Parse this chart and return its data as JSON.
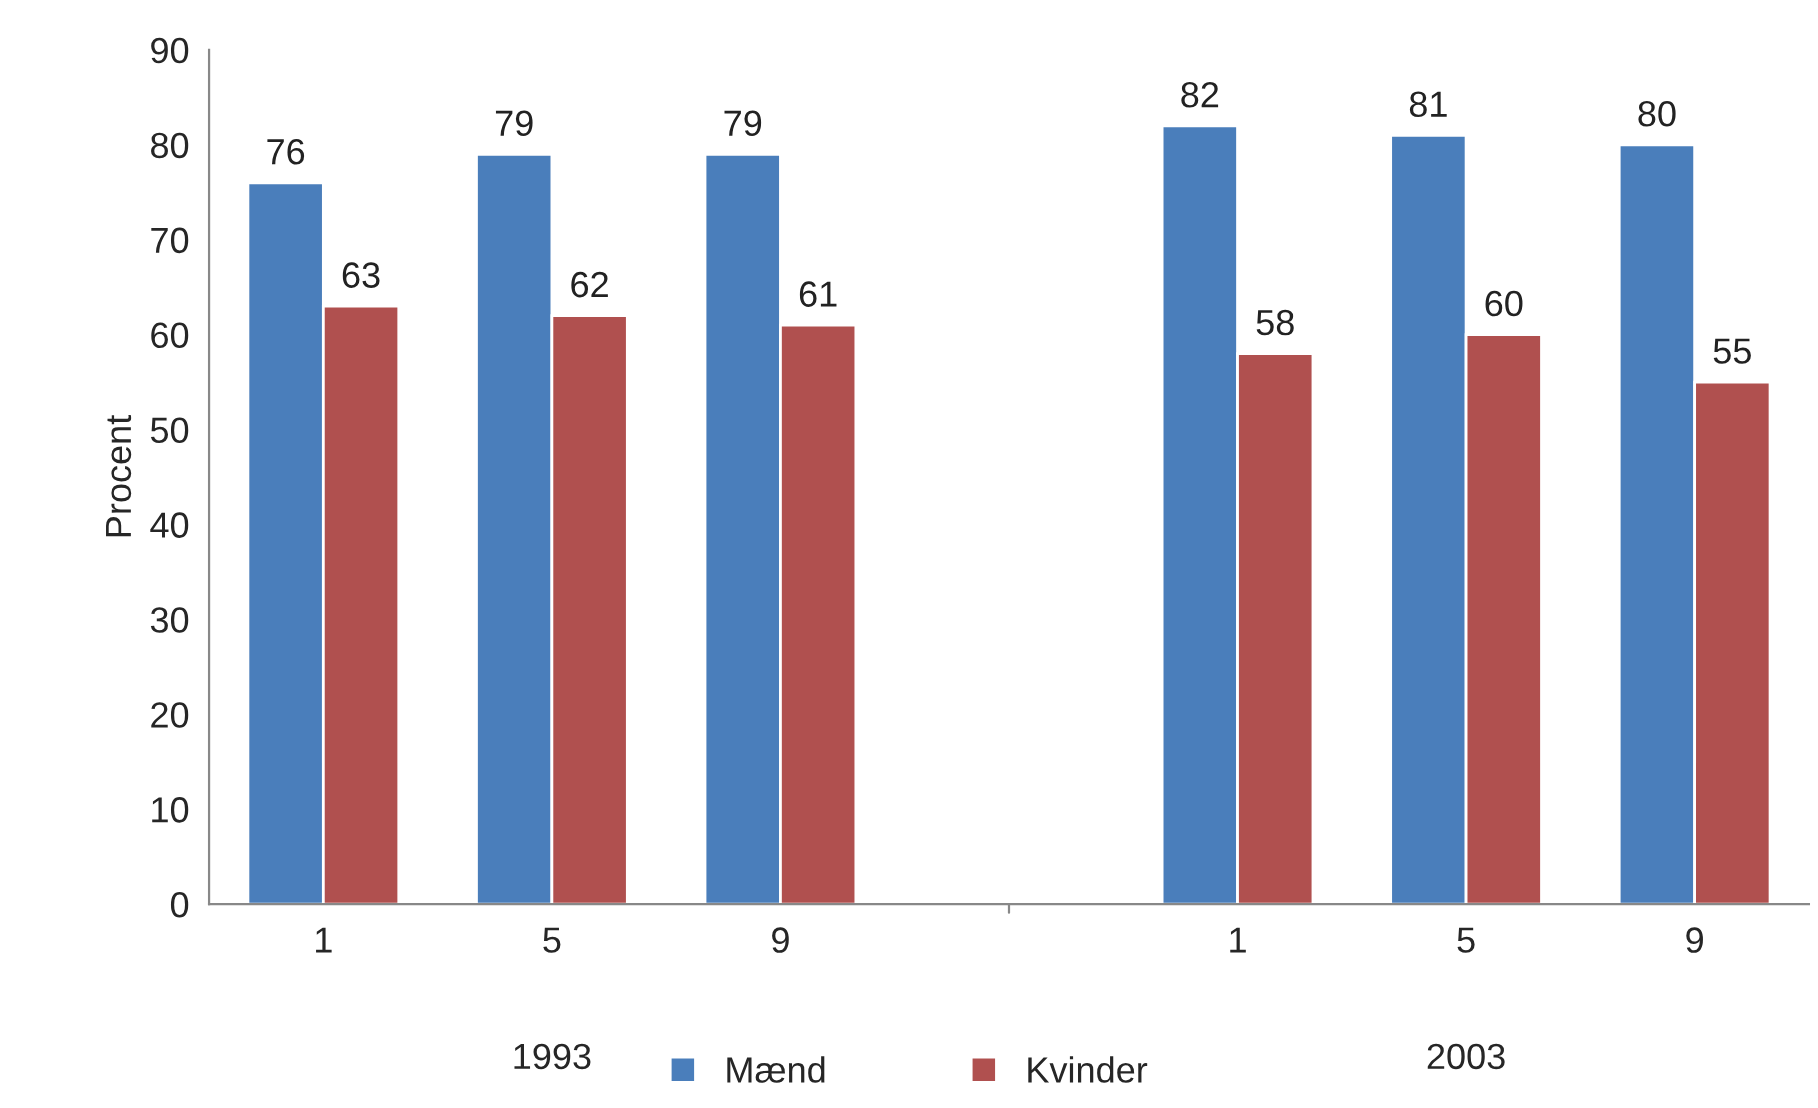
{
  "chart_data": {
    "type": "bar",
    "ylabel": "Procent",
    "categories": [
      "1",
      "5",
      "9",
      null,
      "1",
      "5",
      "9"
    ],
    "series": [
      {
        "name": "Mænd",
        "color": "#4a7ebb",
        "values": [
          76,
          79,
          79,
          null,
          82,
          81,
          80
        ]
      },
      {
        "name": "Kvinder",
        "color": "#b0504f",
        "values": [
          63,
          62,
          61,
          null,
          58,
          60,
          55
        ]
      }
    ],
    "annotations": [
      "1993",
      "2003"
    ],
    "ylim": [
      0,
      90
    ],
    "yticks": [
      0,
      10,
      20,
      30,
      40,
      50,
      60,
      70,
      80,
      90
    ],
    "data_labels": true,
    "grid": false,
    "legend": "bottom"
  }
}
